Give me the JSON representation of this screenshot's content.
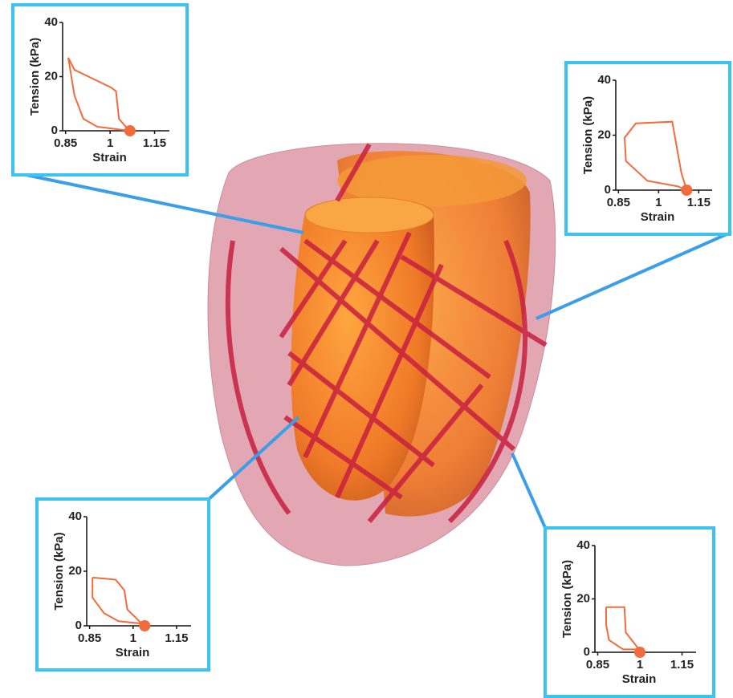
{
  "chart_data": [
    {
      "type": "line",
      "x": [
        0.859,
        0.88,
        1.003,
        1.02,
        1.03,
        1.065,
        0.957,
        0.91,
        0.88,
        0.859
      ],
      "values": [
        27,
        22.5,
        16,
        14.6,
        4.4,
        0,
        1.5,
        4.4,
        13,
        27
      ],
      "marker_x": 1.067,
      "marker_y": 0,
      "color": "#f26b3a",
      "xlim": [
        0.84,
        1.2
      ],
      "xticks": [
        0.85,
        1,
        1.15
      ],
      "ylim": [
        0,
        40
      ],
      "yticks": [
        0,
        20,
        40
      ],
      "x_label": "Strain",
      "y_label": "Tension (kPa)"
    },
    {
      "type": "line",
      "x": [
        1.105,
        1.085,
        1.051,
        0.915,
        0.873,
        0.878,
        0.958,
        1.071,
        1.105
      ],
      "values": [
        0,
        6.3,
        24.9,
        24.3,
        19.1,
        10.6,
        3.4,
        1.4,
        0
      ],
      "marker_x": 1.105,
      "marker_y": 0,
      "color": "#f26b3a",
      "xlim": [
        0.84,
        1.2
      ],
      "xticks": [
        0.85,
        1,
        1.15
      ],
      "ylim": [
        0,
        40
      ],
      "yticks": [
        0,
        20,
        40
      ],
      "x_label": "Strain",
      "y_label": "Tension (kPa)"
    },
    {
      "type": "line",
      "x": [
        0.86,
        0.94,
        0.97,
        0.98,
        1.03,
        0.95,
        0.9,
        0.86,
        0.86
      ],
      "values": [
        17.7,
        16.9,
        13,
        6,
        0.8,
        1.7,
        4.6,
        10.3,
        17.7
      ],
      "marker_x": 1.04,
      "marker_y": 0,
      "color": "#f26b3a",
      "xlim": [
        0.84,
        1.2
      ],
      "xticks": [
        0.85,
        1,
        1.15
      ],
      "ylim": [
        0,
        40
      ],
      "yticks": [
        0,
        20,
        40
      ],
      "x_label": "Strain",
      "y_label": "Tension (kPa)"
    },
    {
      "type": "line",
      "x": [
        0.88,
        0.945,
        0.95,
        0.997,
        0.94,
        0.89,
        0.88,
        0.88
      ],
      "values": [
        16.9,
        16.9,
        7.4,
        1.1,
        1.1,
        4.6,
        10.3,
        16.9
      ],
      "marker_x": 1.0,
      "marker_y": 0,
      "color": "#f26b3a",
      "xlim": [
        0.84,
        1.2
      ],
      "xticks": [
        0.85,
        1,
        1.15
      ],
      "ylim": [
        0,
        40
      ],
      "yticks": [
        0,
        20,
        40
      ],
      "x_label": "Strain",
      "y_label": "Tension (kPa)"
    }
  ]
}
